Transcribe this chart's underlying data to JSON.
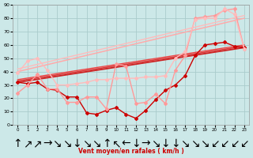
{
  "xlabel": "Vent moyen/en rafales ( km/h )",
  "background_color": "#cce8e8",
  "grid_color": "#aacccc",
  "xlim": [
    -0.5,
    23.5
  ],
  "ylim": [
    0,
    90
  ],
  "yticks": [
    0,
    10,
    20,
    30,
    40,
    50,
    60,
    70,
    80,
    90
  ],
  "xticks": [
    0,
    1,
    2,
    3,
    4,
    5,
    6,
    7,
    8,
    9,
    10,
    11,
    12,
    13,
    14,
    15,
    16,
    17,
    18,
    19,
    20,
    21,
    22,
    23
  ],
  "lines": [
    {
      "x": [
        0,
        1,
        2,
        3,
        4,
        5,
        6,
        7,
        8,
        9,
        10,
        11,
        12,
        13,
        14,
        15,
        16,
        17,
        18,
        19,
        20,
        21,
        22,
        23
      ],
      "y": [
        32,
        31,
        32,
        27,
        26,
        21,
        21,
        9,
        8,
        11,
        13,
        8,
        5,
        11,
        19,
        26,
        30,
        37,
        52,
        60,
        61,
        62,
        59,
        58
      ],
      "color": "#cc0000",
      "linewidth": 1.0,
      "marker": "D",
      "markersize": 2.0,
      "zorder": 5
    },
    {
      "x": [
        0,
        1,
        2,
        3,
        4,
        5,
        6,
        7,
        8,
        9,
        10,
        11,
        12,
        13,
        14,
        15,
        16,
        17,
        18,
        19,
        20,
        21,
        22,
        23
      ],
      "y": [
        24,
        30,
        38,
        27,
        27,
        17,
        17,
        21,
        21,
        12,
        46,
        44,
        16,
        17,
        23,
        16,
        41,
        52,
        80,
        81,
        82,
        86,
        87,
        57
      ],
      "color": "#ff9999",
      "linewidth": 1.0,
      "marker": "D",
      "markersize": 2.0,
      "zorder": 6
    },
    {
      "x": [
        0,
        1,
        2,
        3,
        4,
        5,
        6,
        7,
        8,
        9,
        10,
        11,
        12,
        13,
        14,
        15,
        16,
        17,
        18,
        19,
        20,
        21,
        22,
        23
      ],
      "y": [
        39,
        48,
        50,
        41,
        30,
        30,
        31,
        32,
        34,
        34,
        35,
        35,
        35,
        36,
        36,
        37,
        50,
        55,
        79,
        80,
        80,
        87,
        83,
        57
      ],
      "color": "#ffbbbb",
      "linewidth": 1.0,
      "marker": "D",
      "markersize": 2.0,
      "zorder": 6
    },
    {
      "x": [
        0,
        23
      ],
      "y": [
        32,
        58
      ],
      "color": "#cc2222",
      "linewidth": 1.3,
      "marker": null,
      "markersize": 0,
      "zorder": 4
    },
    {
      "x": [
        0,
        23
      ],
      "y": [
        33,
        59
      ],
      "color": "#dd3333",
      "linewidth": 1.1,
      "marker": null,
      "markersize": 0,
      "zorder": 4
    },
    {
      "x": [
        0,
        23
      ],
      "y": [
        34,
        60
      ],
      "color": "#ee4444",
      "linewidth": 1.0,
      "marker": null,
      "markersize": 0,
      "zorder": 3
    },
    {
      "x": [
        0,
        23
      ],
      "y": [
        40,
        80
      ],
      "color": "#ffaaaa",
      "linewidth": 1.1,
      "marker": null,
      "markersize": 0,
      "zorder": 3
    },
    {
      "x": [
        0,
        23
      ],
      "y": [
        42,
        82
      ],
      "color": "#ffbbbb",
      "linewidth": 1.0,
      "marker": null,
      "markersize": 0,
      "zorder": 2
    }
  ],
  "arrow_symbols": [
    "↑",
    "↗",
    "↗",
    "→",
    "↘",
    "↘",
    "↓",
    "↘",
    "↘",
    "↑",
    "↖",
    "←",
    "↓",
    "→",
    "↘",
    "↓",
    "↓",
    "↘",
    "↘",
    "↘",
    "↙",
    "↙",
    "↙",
    "↙"
  ],
  "arrow_color": "#cc2222"
}
